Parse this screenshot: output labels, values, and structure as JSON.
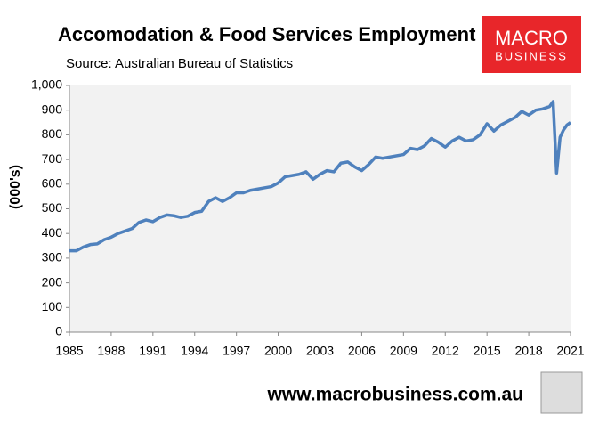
{
  "chart_data": {
    "type": "line",
    "title": "Accomodation & Food Services Employment",
    "subtitle": "Source: Australian Bureau of Statistics",
    "y_label": "(000's)",
    "footer": "www.macrobusiness.com.au",
    "logo": [
      "MACRO",
      "BUSINESS"
    ],
    "x": [
      1985,
      1985.5,
      1986,
      1986.5,
      1987,
      1987.5,
      1988,
      1988.5,
      1989,
      1989.5,
      1990,
      1990.5,
      1991,
      1991.5,
      1992,
      1992.5,
      1993,
      1993.5,
      1994,
      1994.5,
      1995,
      1995.5,
      1996,
      1996.5,
      1997,
      1997.5,
      1998,
      1998.5,
      1999,
      1999.5,
      2000,
      2000.5,
      2001,
      2001.5,
      2002,
      2002.5,
      2003,
      2003.5,
      2004,
      2004.5,
      2005,
      2005.5,
      2006,
      2006.5,
      2007,
      2007.5,
      2008,
      2008.5,
      2009,
      2009.5,
      2010,
      2010.5,
      2011,
      2011.5,
      2012,
      2012.5,
      2013,
      2013.5,
      2014,
      2014.5,
      2015,
      2015.5,
      2016,
      2016.5,
      2017,
      2017.5,
      2018,
      2018.5,
      2019,
      2019.5,
      2019.75,
      2020,
      2020.25,
      2020.5,
      2020.75,
      2021
    ],
    "series": [
      {
        "name": "Employment",
        "color": "#4f81bd",
        "values": [
          330,
          330,
          345,
          355,
          358,
          375,
          385,
          400,
          410,
          420,
          445,
          455,
          448,
          465,
          475,
          472,
          465,
          470,
          485,
          490,
          530,
          545,
          530,
          545,
          565,
          565,
          575,
          580,
          585,
          590,
          605,
          630,
          635,
          640,
          650,
          620,
          640,
          655,
          650,
          685,
          690,
          670,
          655,
          680,
          710,
          705,
          710,
          715,
          720,
          745,
          740,
          755,
          785,
          770,
          750,
          775,
          790,
          775,
          780,
          800,
          845,
          815,
          840,
          855,
          870,
          895,
          880,
          900,
          905,
          915,
          935,
          645,
          790,
          820,
          840,
          850
        ]
      }
    ],
    "xlim": [
      1985,
      2021
    ],
    "xticks": [
      1985,
      1988,
      1991,
      1994,
      1997,
      2000,
      2003,
      2006,
      2009,
      2012,
      2015,
      2018,
      2021
    ],
    "ylim": [
      0,
      1000
    ],
    "yticks": [
      0,
      100,
      200,
      300,
      400,
      500,
      600,
      700,
      800,
      900,
      {
        "value": 1000,
        "label": "1,000"
      }
    ],
    "grid": false
  }
}
